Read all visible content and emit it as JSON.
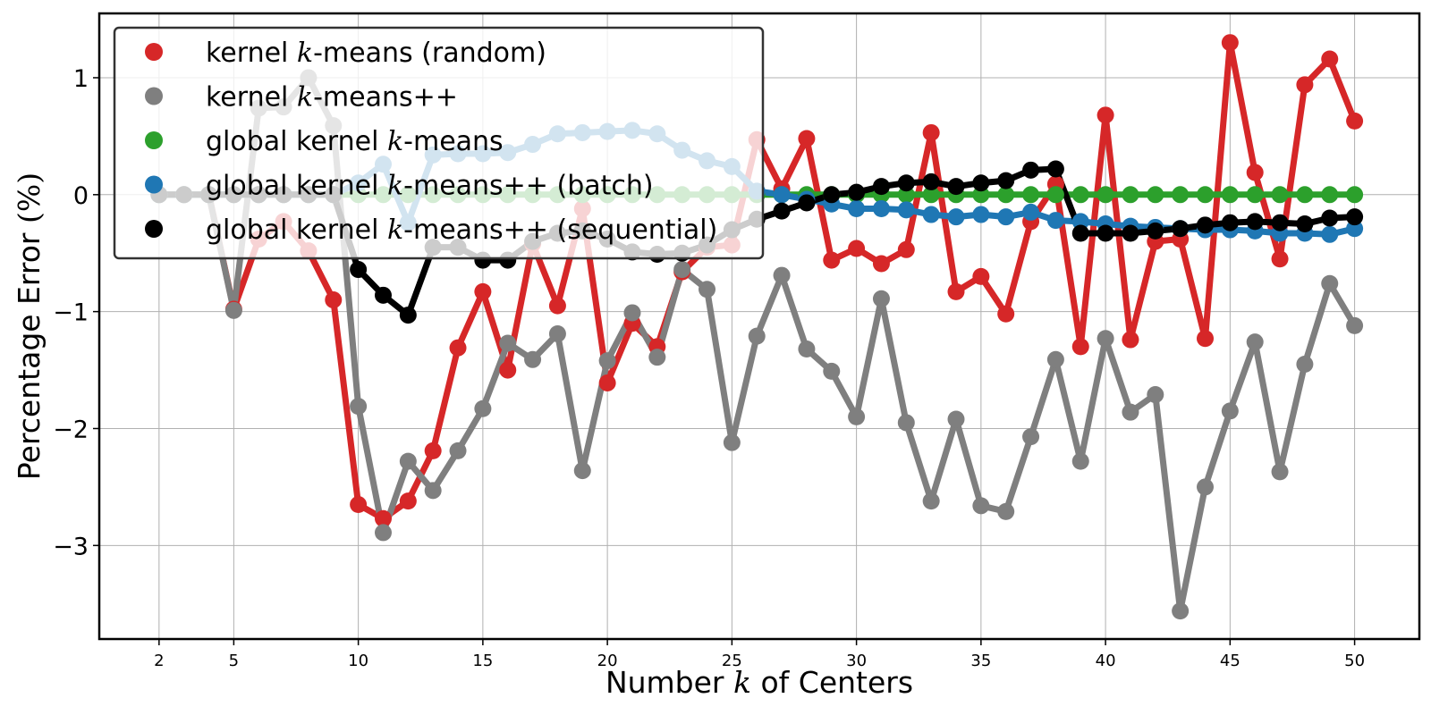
{
  "chart_data": {
    "type": "line",
    "xlabel": "Number k of Centers",
    "ylabel": "Percentage Error (%)",
    "xlim": [
      -0.4,
      52.6
    ],
    "ylim": [
      -3.8,
      1.55
    ],
    "x_ticks": [
      2,
      5,
      10,
      15,
      20,
      25,
      30,
      35,
      40,
      45,
      50
    ],
    "y_ticks": [
      {
        "value": 1,
        "label": "1"
      },
      {
        "value": 0,
        "label": "0"
      },
      {
        "value": -1,
        "label": "−1"
      },
      {
        "value": -2,
        "label": "−2"
      },
      {
        "value": -3,
        "label": "−3"
      }
    ],
    "grid": true,
    "legend_position": "top-left",
    "x": [
      2,
      3,
      4,
      5,
      6,
      7,
      8,
      9,
      10,
      11,
      12,
      13,
      14,
      15,
      16,
      17,
      18,
      19,
      20,
      21,
      22,
      23,
      24,
      25,
      26,
      27,
      28,
      29,
      30,
      31,
      32,
      33,
      34,
      35,
      36,
      37,
      38,
      39,
      40,
      41,
      42,
      43,
      44,
      45,
      46,
      47,
      48,
      49,
      50
    ],
    "series": [
      {
        "name": "kernel k-means (random)",
        "color": "#d62728",
        "values": [
          0,
          0,
          0,
          -0.98,
          -0.38,
          -0.23,
          -0.48,
          -0.9,
          -2.65,
          -2.77,
          -2.62,
          -2.19,
          -1.31,
          -0.83,
          -1.5,
          -0.42,
          -0.95,
          -0.12,
          -1.61,
          -1.1,
          -1.3,
          -0.66,
          -0.45,
          -0.43,
          0.47,
          0.05,
          0.48,
          -0.56,
          -0.46,
          -0.59,
          -0.47,
          0.53,
          -0.83,
          -0.7,
          -1.02,
          -0.23,
          0.09,
          -1.3,
          0.68,
          -1.24,
          -0.4,
          -0.38,
          -1.23,
          1.3,
          0.19,
          -0.55,
          0.94,
          1.16,
          0.63
        ]
      },
      {
        "name": "kernel k-means++",
        "color": "#7f7f7f",
        "values": [
          0,
          0,
          0,
          -0.99,
          0.74,
          0.75,
          1.0,
          0.59,
          -1.81,
          -2.89,
          -2.28,
          -2.53,
          -2.19,
          -1.83,
          -1.27,
          -1.41,
          -1.19,
          -2.36,
          -1.42,
          -1.01,
          -1.39,
          -0.64,
          -0.81,
          -2.12,
          -1.21,
          -0.69,
          -1.32,
          -1.51,
          -1.9,
          -0.89,
          -1.95,
          -2.62,
          -1.92,
          -2.66,
          -2.71,
          -2.07,
          -1.41,
          -2.28,
          -1.23,
          -1.86,
          -1.71,
          -3.56,
          -2.5,
          -1.85,
          -1.26,
          -2.37,
          -1.45,
          -0.76,
          -1.12
        ]
      },
      {
        "name": "global kernel k-means",
        "color": "#2ca02c",
        "values": [
          0,
          0,
          0,
          0,
          0,
          0,
          0,
          0,
          0,
          0,
          0,
          0,
          0,
          0,
          0,
          0,
          0,
          0,
          0,
          0,
          0,
          0,
          0,
          0,
          0,
          0,
          0,
          0,
          0,
          0,
          0,
          0,
          0,
          0,
          0,
          0,
          0,
          0,
          0,
          0,
          0,
          0,
          0,
          0,
          0,
          0,
          0,
          0,
          0
        ]
      },
      {
        "name": "global kernel k-means++ (batch)",
        "color": "#1f77b4",
        "values": [
          0,
          0,
          0,
          0,
          0,
          0,
          0,
          0,
          0.1,
          0.26,
          -0.24,
          0.34,
          0.35,
          0.35,
          0.36,
          0.43,
          0.52,
          0.53,
          0.54,
          0.55,
          0.52,
          0.38,
          0.29,
          0.24,
          0.03,
          0,
          -0.04,
          -0.08,
          -0.12,
          -0.12,
          -0.13,
          -0.17,
          -0.19,
          -0.17,
          -0.19,
          -0.15,
          -0.22,
          -0.23,
          -0.25,
          -0.27,
          -0.28,
          -0.29,
          -0.3,
          -0.3,
          -0.31,
          -0.33,
          -0.33,
          -0.34,
          -0.29
        ]
      },
      {
        "name": "global kernel k-means++ (sequential)",
        "color": "#000000",
        "values": [
          0,
          0,
          0,
          0,
          0,
          0,
          0,
          0,
          -0.64,
          -0.86,
          -1.03,
          -0.45,
          -0.45,
          -0.56,
          -0.56,
          -0.4,
          -0.33,
          -0.31,
          -0.38,
          -0.49,
          -0.51,
          -0.5,
          -0.43,
          -0.3,
          -0.21,
          -0.14,
          -0.07,
          0.0,
          0.02,
          0.07,
          0.1,
          0.11,
          0.07,
          0.1,
          0.12,
          0.21,
          0.22,
          -0.33,
          -0.33,
          -0.33,
          -0.31,
          -0.29,
          -0.26,
          -0.24,
          -0.23,
          -0.24,
          -0.25,
          -0.2,
          -0.19
        ]
      }
    ]
  },
  "legend": {
    "entries": [
      {
        "prefix": "kernel ",
        "k": "k",
        "suffix": "-means (random)"
      },
      {
        "prefix": "kernel ",
        "k": "k",
        "suffix": "-means++"
      },
      {
        "prefix": "global kernel ",
        "k": "k",
        "suffix": "-means"
      },
      {
        "prefix": "global kernel ",
        "k": "k",
        "suffix": "-means++ (batch)"
      },
      {
        "prefix": "global kernel ",
        "k": "k",
        "suffix": "-means++ (sequential)"
      }
    ]
  },
  "labels": {
    "x": {
      "prefix": "Number ",
      "k": "k",
      "suffix": " of Centers"
    },
    "y": {
      "prefix": "Percentage Error ",
      "unit": "(%)"
    }
  }
}
